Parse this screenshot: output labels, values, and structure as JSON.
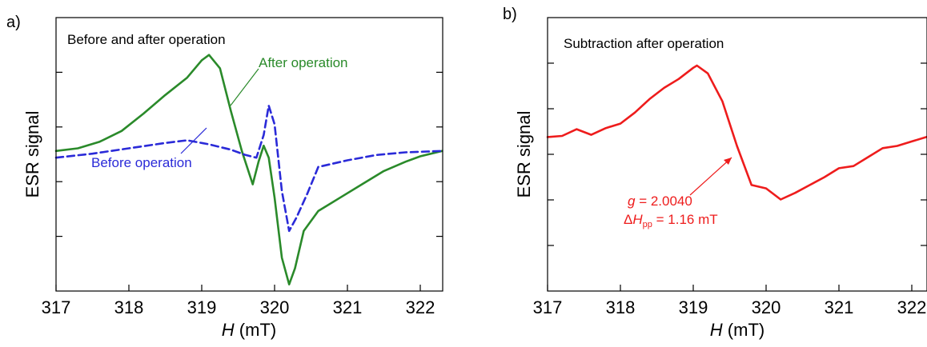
{
  "chart_data": [
    {
      "type": "line",
      "panel": "a)",
      "title": "Before and after operation",
      "xlabel_symbol": "H",
      "xlabel_unit": "(mT)",
      "ylabel": "ESR signal",
      "xlim": [
        317,
        322.3
      ],
      "ylim": [
        -1.05,
        1.0
      ],
      "xticks": [
        317,
        318,
        319,
        320,
        321,
        322
      ],
      "yticks_unlabeled": 4,
      "grid": false,
      "series": [
        {
          "name": "After operation",
          "color": "#2a8a2a",
          "style": "solid",
          "x": [
            317.0,
            317.3,
            317.6,
            317.9,
            318.2,
            318.5,
            318.8,
            319.0,
            319.1,
            319.25,
            319.4,
            319.55,
            319.7,
            319.78,
            319.85,
            319.92,
            320.0,
            320.1,
            320.2,
            320.28,
            320.4,
            320.6,
            320.9,
            321.2,
            321.5,
            321.8,
            322.0,
            322.3
          ],
          "y": [
            0.0,
            0.02,
            0.07,
            0.15,
            0.28,
            0.42,
            0.55,
            0.68,
            0.72,
            0.62,
            0.3,
            0.0,
            -0.25,
            -0.08,
            0.04,
            -0.05,
            -0.35,
            -0.8,
            -1.0,
            -0.88,
            -0.6,
            -0.45,
            -0.35,
            -0.25,
            -0.15,
            -0.08,
            -0.04,
            0.0
          ]
        },
        {
          "name": "Before operation",
          "color": "#2a2ad8",
          "style": "dashed",
          "x": [
            317.0,
            317.5,
            318.0,
            318.5,
            318.8,
            319.1,
            319.4,
            319.6,
            319.75,
            319.85,
            319.92,
            320.0,
            320.1,
            320.2,
            320.3,
            320.45,
            320.6,
            321.0,
            321.4,
            321.8,
            322.3
          ],
          "y": [
            -0.05,
            -0.02,
            0.02,
            0.06,
            0.08,
            0.05,
            0.01,
            -0.03,
            -0.05,
            0.12,
            0.34,
            0.2,
            -0.3,
            -0.6,
            -0.5,
            -0.32,
            -0.12,
            -0.07,
            -0.03,
            -0.01,
            0.0
          ]
        }
      ],
      "annotations": [
        "After operation",
        "Before operation"
      ]
    },
    {
      "type": "line",
      "panel": "b)",
      "title": "Subtraction after operation",
      "xlabel_symbol": "H",
      "xlabel_unit": "(mT)",
      "ylabel": "ESR signal",
      "xlim": [
        317,
        322.3
      ],
      "ylim": [
        -1.4,
        1.05
      ],
      "xticks": [
        317,
        318,
        319,
        320,
        321,
        322
      ],
      "yticks_unlabeled": 5,
      "grid": false,
      "series": [
        {
          "name": "",
          "color": "#ee1c1c",
          "style": "solid",
          "x": [
            317.0,
            317.2,
            317.4,
            317.6,
            317.8,
            318.0,
            318.2,
            318.4,
            318.6,
            318.8,
            319.0,
            319.05,
            319.2,
            319.4,
            319.6,
            319.8,
            320.0,
            320.2,
            320.4,
            320.6,
            320.8,
            321.0,
            321.2,
            321.4,
            321.6,
            321.8,
            322.0,
            322.3
          ],
          "y": [
            -0.02,
            -0.01,
            0.05,
            0.0,
            0.06,
            0.1,
            0.2,
            0.32,
            0.42,
            0.5,
            0.6,
            0.62,
            0.55,
            0.3,
            -0.1,
            -0.45,
            -0.48,
            -0.58,
            -0.52,
            -0.45,
            -0.38,
            -0.3,
            -0.28,
            -0.2,
            -0.12,
            -0.1,
            -0.06,
            0.0
          ]
        }
      ],
      "annotation": {
        "g_symbol": "g",
        "g_text": " = 2.0040",
        "dh_prefix": "Δ",
        "dh_symbol": "H",
        "dh_sub": "pp",
        "dh_text": " = 1.16 mT",
        "arrow_target_x": 319.6
      }
    }
  ]
}
